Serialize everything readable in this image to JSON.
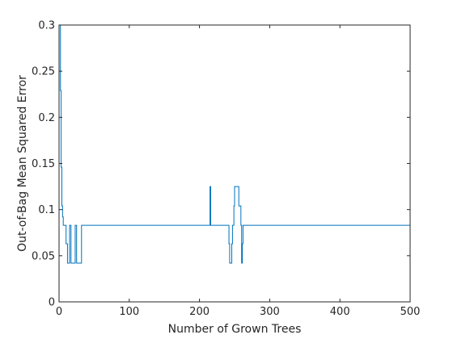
{
  "chart_data": {
    "type": "line",
    "title": "",
    "xlabel": "Number of Grown Trees",
    "ylabel": "Out-of-Bag Mean Squared Error",
    "xlim": [
      0,
      500
    ],
    "ylim": [
      0,
      0.3
    ],
    "xticks": [
      0,
      100,
      200,
      300,
      400,
      500
    ],
    "yticks": [
      0,
      0.05,
      0.1,
      0.15,
      0.2,
      0.25,
      0.3
    ],
    "xtick_labels": [
      "0",
      "100",
      "200",
      "300",
      "400",
      "500"
    ],
    "ytick_labels": [
      "0",
      "0.05",
      "0.1",
      "0.15",
      "0.2",
      "0.25",
      "0.3"
    ],
    "grid": false,
    "legend": "none",
    "series": [
      {
        "color": "#0072BD",
        "step": "post",
        "x": [
          1,
          2,
          3,
          4,
          5,
          6,
          10,
          12,
          15,
          17,
          19,
          23,
          25,
          32,
          215,
          216,
          242,
          243,
          246,
          247,
          249,
          250,
          256,
          259,
          260,
          261,
          262,
          500
        ],
        "y": [
          0.3,
          0.229,
          0.146,
          0.104,
          0.092,
          0.083,
          0.063,
          0.042,
          0.083,
          0.042,
          0.042,
          0.083,
          0.042,
          0.083,
          0.125,
          0.083,
          0.063,
          0.042,
          0.063,
          0.083,
          0.104,
          0.125,
          0.104,
          0.083,
          0.042,
          0.063,
          0.083,
          0.083
        ]
      }
    ]
  }
}
